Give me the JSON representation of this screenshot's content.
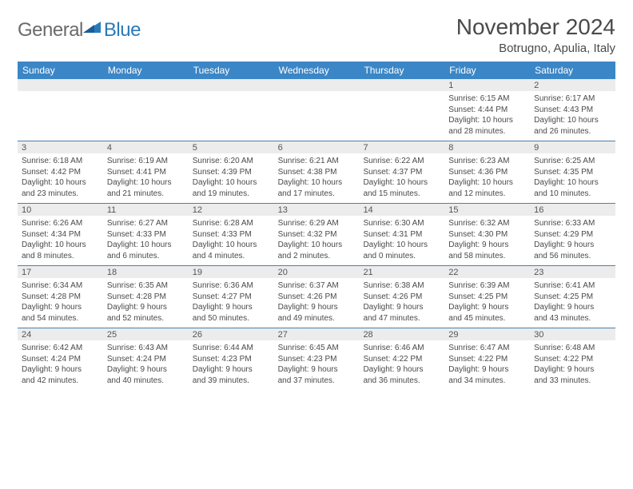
{
  "logo": {
    "text1": "General",
    "text2": "Blue"
  },
  "title": "November 2024",
  "location": "Botrugno, Apulia, Italy",
  "colors": {
    "header_bg": "#3b86c6",
    "header_text": "#ffffff",
    "band_bg": "#ececec",
    "rule": "#4a7fb0",
    "body_text": "#4a4a4a",
    "logo_gray": "#6a6a6a",
    "logo_blue": "#2a7ab8"
  },
  "day_names": [
    "Sunday",
    "Monday",
    "Tuesday",
    "Wednesday",
    "Thursday",
    "Friday",
    "Saturday"
  ],
  "weeks": [
    [
      null,
      null,
      null,
      null,
      null,
      {
        "n": "1",
        "sunrise": "Sunrise: 6:15 AM",
        "sunset": "Sunset: 4:44 PM",
        "day1": "Daylight: 10 hours",
        "day2": "and 28 minutes."
      },
      {
        "n": "2",
        "sunrise": "Sunrise: 6:17 AM",
        "sunset": "Sunset: 4:43 PM",
        "day1": "Daylight: 10 hours",
        "day2": "and 26 minutes."
      }
    ],
    [
      {
        "n": "3",
        "sunrise": "Sunrise: 6:18 AM",
        "sunset": "Sunset: 4:42 PM",
        "day1": "Daylight: 10 hours",
        "day2": "and 23 minutes."
      },
      {
        "n": "4",
        "sunrise": "Sunrise: 6:19 AM",
        "sunset": "Sunset: 4:41 PM",
        "day1": "Daylight: 10 hours",
        "day2": "and 21 minutes."
      },
      {
        "n": "5",
        "sunrise": "Sunrise: 6:20 AM",
        "sunset": "Sunset: 4:39 PM",
        "day1": "Daylight: 10 hours",
        "day2": "and 19 minutes."
      },
      {
        "n": "6",
        "sunrise": "Sunrise: 6:21 AM",
        "sunset": "Sunset: 4:38 PM",
        "day1": "Daylight: 10 hours",
        "day2": "and 17 minutes."
      },
      {
        "n": "7",
        "sunrise": "Sunrise: 6:22 AM",
        "sunset": "Sunset: 4:37 PM",
        "day1": "Daylight: 10 hours",
        "day2": "and 15 minutes."
      },
      {
        "n": "8",
        "sunrise": "Sunrise: 6:23 AM",
        "sunset": "Sunset: 4:36 PM",
        "day1": "Daylight: 10 hours",
        "day2": "and 12 minutes."
      },
      {
        "n": "9",
        "sunrise": "Sunrise: 6:25 AM",
        "sunset": "Sunset: 4:35 PM",
        "day1": "Daylight: 10 hours",
        "day2": "and 10 minutes."
      }
    ],
    [
      {
        "n": "10",
        "sunrise": "Sunrise: 6:26 AM",
        "sunset": "Sunset: 4:34 PM",
        "day1": "Daylight: 10 hours",
        "day2": "and 8 minutes."
      },
      {
        "n": "11",
        "sunrise": "Sunrise: 6:27 AM",
        "sunset": "Sunset: 4:33 PM",
        "day1": "Daylight: 10 hours",
        "day2": "and 6 minutes."
      },
      {
        "n": "12",
        "sunrise": "Sunrise: 6:28 AM",
        "sunset": "Sunset: 4:33 PM",
        "day1": "Daylight: 10 hours",
        "day2": "and 4 minutes."
      },
      {
        "n": "13",
        "sunrise": "Sunrise: 6:29 AM",
        "sunset": "Sunset: 4:32 PM",
        "day1": "Daylight: 10 hours",
        "day2": "and 2 minutes."
      },
      {
        "n": "14",
        "sunrise": "Sunrise: 6:30 AM",
        "sunset": "Sunset: 4:31 PM",
        "day1": "Daylight: 10 hours",
        "day2": "and 0 minutes."
      },
      {
        "n": "15",
        "sunrise": "Sunrise: 6:32 AM",
        "sunset": "Sunset: 4:30 PM",
        "day1": "Daylight: 9 hours",
        "day2": "and 58 minutes."
      },
      {
        "n": "16",
        "sunrise": "Sunrise: 6:33 AM",
        "sunset": "Sunset: 4:29 PM",
        "day1": "Daylight: 9 hours",
        "day2": "and 56 minutes."
      }
    ],
    [
      {
        "n": "17",
        "sunrise": "Sunrise: 6:34 AM",
        "sunset": "Sunset: 4:28 PM",
        "day1": "Daylight: 9 hours",
        "day2": "and 54 minutes."
      },
      {
        "n": "18",
        "sunrise": "Sunrise: 6:35 AM",
        "sunset": "Sunset: 4:28 PM",
        "day1": "Daylight: 9 hours",
        "day2": "and 52 minutes."
      },
      {
        "n": "19",
        "sunrise": "Sunrise: 6:36 AM",
        "sunset": "Sunset: 4:27 PM",
        "day1": "Daylight: 9 hours",
        "day2": "and 50 minutes."
      },
      {
        "n": "20",
        "sunrise": "Sunrise: 6:37 AM",
        "sunset": "Sunset: 4:26 PM",
        "day1": "Daylight: 9 hours",
        "day2": "and 49 minutes."
      },
      {
        "n": "21",
        "sunrise": "Sunrise: 6:38 AM",
        "sunset": "Sunset: 4:26 PM",
        "day1": "Daylight: 9 hours",
        "day2": "and 47 minutes."
      },
      {
        "n": "22",
        "sunrise": "Sunrise: 6:39 AM",
        "sunset": "Sunset: 4:25 PM",
        "day1": "Daylight: 9 hours",
        "day2": "and 45 minutes."
      },
      {
        "n": "23",
        "sunrise": "Sunrise: 6:41 AM",
        "sunset": "Sunset: 4:25 PM",
        "day1": "Daylight: 9 hours",
        "day2": "and 43 minutes."
      }
    ],
    [
      {
        "n": "24",
        "sunrise": "Sunrise: 6:42 AM",
        "sunset": "Sunset: 4:24 PM",
        "day1": "Daylight: 9 hours",
        "day2": "and 42 minutes."
      },
      {
        "n": "25",
        "sunrise": "Sunrise: 6:43 AM",
        "sunset": "Sunset: 4:24 PM",
        "day1": "Daylight: 9 hours",
        "day2": "and 40 minutes."
      },
      {
        "n": "26",
        "sunrise": "Sunrise: 6:44 AM",
        "sunset": "Sunset: 4:23 PM",
        "day1": "Daylight: 9 hours",
        "day2": "and 39 minutes."
      },
      {
        "n": "27",
        "sunrise": "Sunrise: 6:45 AM",
        "sunset": "Sunset: 4:23 PM",
        "day1": "Daylight: 9 hours",
        "day2": "and 37 minutes."
      },
      {
        "n": "28",
        "sunrise": "Sunrise: 6:46 AM",
        "sunset": "Sunset: 4:22 PM",
        "day1": "Daylight: 9 hours",
        "day2": "and 36 minutes."
      },
      {
        "n": "29",
        "sunrise": "Sunrise: 6:47 AM",
        "sunset": "Sunset: 4:22 PM",
        "day1": "Daylight: 9 hours",
        "day2": "and 34 minutes."
      },
      {
        "n": "30",
        "sunrise": "Sunrise: 6:48 AM",
        "sunset": "Sunset: 4:22 PM",
        "day1": "Daylight: 9 hours",
        "day2": "and 33 minutes."
      }
    ]
  ]
}
